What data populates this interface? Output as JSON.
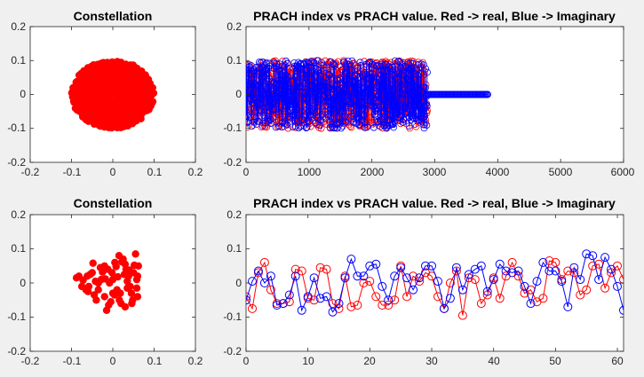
{
  "figure": {
    "background": "#f0f0f0",
    "axes_color": "#262626"
  },
  "chart_data": [
    {
      "id": "constellation-top",
      "type": "scatter",
      "title": "Constellation",
      "xlim": [
        -0.2,
        0.2
      ],
      "ylim": [
        -0.2,
        0.2
      ],
      "xticks": [
        "-0.2",
        "-0.1",
        "0",
        "0.1",
        "0.2"
      ],
      "yticks": [
        "-0.2",
        "-0.1",
        "0",
        "0.1",
        "0.2"
      ],
      "marker": "filled-circle",
      "color": "#ff0000",
      "distribution": "dense uniform disc of radius ~0.1 centered at origin",
      "series": [
        {
          "points": [
            [
              0,
              0
            ],
            [
              0.05,
              0.05
            ],
            [
              -0.05,
              -0.05
            ],
            [
              0.08,
              -0.02
            ],
            [
              -0.09,
              0.03
            ],
            [
              0.02,
              0.09
            ],
            [
              -0.03,
              -0.09
            ],
            [
              0.1,
              0.01
            ],
            [
              -0.1,
              -0.01
            ]
          ]
        }
      ]
    },
    {
      "id": "prach-top",
      "type": "line",
      "title": "PRACH index vs PRACH value. Red -> real, Blue -> Imaginary",
      "xlim": [
        0,
        6000
      ],
      "ylim": [
        -0.2,
        0.2
      ],
      "xticks": [
        "0",
        "1000",
        "2000",
        "3000",
        "4000",
        "5000",
        "6000"
      ],
      "yticks": [
        "-0.2",
        "-0.1",
        "0",
        "0.1",
        "0.2"
      ],
      "series": [
        {
          "color": "#ff0000",
          "marker": "circle",
          "x_range": [
            0,
            2880
          ],
          "y_range": [
            -0.1,
            0.1
          ]
        },
        {
          "color": "#0000ff",
          "marker": "circle",
          "x_range": [
            0,
            2880
          ],
          "y_range": [
            -0.1,
            0.1
          ],
          "flat_segment": {
            "x": [
              2880,
              3840
            ],
            "y": 0
          }
        }
      ]
    },
    {
      "id": "constellation-bottom",
      "type": "scatter",
      "title": "Constellation",
      "xlim": [
        -0.2,
        0.2
      ],
      "ylim": [
        -0.2,
        0.2
      ],
      "xticks": [
        "-0.2",
        "-0.1",
        "0",
        "0.1",
        "0.2"
      ],
      "yticks": [
        "-0.2",
        "-0.1",
        "0",
        "0.1",
        "0.2"
      ],
      "marker": "filled-circle",
      "color": "#ff0000",
      "x": [
        -0.088,
        -0.072,
        -0.062,
        -0.058,
        -0.048,
        -0.042,
        -0.035,
        -0.03,
        -0.025,
        -0.02,
        -0.018,
        -0.01,
        -0.008,
        -0.002,
        0.004,
        0.008,
        0.012,
        0.016,
        0.022,
        0.028,
        0.035,
        0.04,
        0.046,
        0.052,
        0.058,
        -0.075,
        -0.05,
        -0.04,
        -0.012,
        0.0,
        0.01,
        0.025,
        0.03,
        0.038,
        0.045,
        0.055,
        0.06,
        -0.065,
        -0.055,
        -0.028,
        -0.015,
        0.005,
        0.018,
        0.042,
        0.05,
        0.062,
        -0.082,
        -0.045,
        -0.005,
        0.032,
        0.048,
        0.02,
        -0.035,
        0.015,
        0.058,
        0.0,
        -0.02,
        0.035,
        0.06,
        -0.06,
        0.03
      ],
      "y": [
        0.015,
        0.008,
        0.02,
        -0.01,
        0.058,
        0.005,
        -0.02,
        0.045,
        0.032,
        -0.04,
        0.012,
        -0.065,
        0.0,
        0.03,
        -0.035,
        0.048,
        0.018,
        -0.05,
        0.062,
        0.025,
        -0.015,
        0.038,
        -0.06,
        0.052,
        0.01,
        -0.01,
        0.03,
        -0.05,
        0.04,
        0.01,
        -0.02,
        0.07,
        -0.07,
        0.02,
        -0.03,
        0.085,
        -0.04,
        -0.02,
        0.025,
        0.01,
        -0.08,
        0.06,
        -0.03,
        -0.01,
        0.03,
        0.05,
        0.02,
        -0.035,
        -0.055,
        0.04,
        -0.05,
        -0.06,
        0.0,
        0.08,
        -0.015,
        -0.03,
        0.05,
        0.005,
        0.02,
        -0.025,
        0.055
      ]
    },
    {
      "id": "prach-bottom",
      "type": "line",
      "title": "PRACH index vs PRACH value. Red -> real, Blue -> Imaginary",
      "xlim": [
        0,
        61
      ],
      "ylim": [
        -0.2,
        0.2
      ],
      "xticks": [
        "0",
        "10",
        "20",
        "30",
        "40",
        "50",
        "60"
      ],
      "yticks": [
        "-0.2",
        "-0.1",
        "0",
        "0.1",
        "0.2"
      ],
      "x": [
        0,
        1,
        2,
        3,
        4,
        5,
        6,
        7,
        8,
        9,
        10,
        11,
        12,
        13,
        14,
        15,
        16,
        17,
        18,
        19,
        20,
        21,
        22,
        23,
        24,
        25,
        26,
        27,
        28,
        29,
        30,
        31,
        32,
        33,
        34,
        35,
        36,
        37,
        38,
        39,
        40,
        41,
        42,
        43,
        44,
        45,
        46,
        47,
        48,
        49,
        50,
        51,
        52,
        53,
        54,
        55,
        56,
        57,
        58,
        59,
        60,
        61
      ],
      "series": [
        {
          "color": "#ff0000",
          "marker": "circle",
          "values": [
            -0.04,
            -0.075,
            0.03,
            0.06,
            -0.02,
            -0.06,
            -0.06,
            -0.055,
            0.04,
            0.035,
            -0.045,
            -0.05,
            0.045,
            0.04,
            -0.06,
            -0.075,
            0.02,
            -0.07,
            -0.065,
            0.0,
            0.005,
            -0.04,
            -0.065,
            -0.065,
            -0.05,
            0.05,
            -0.04,
            0.02,
            0.005,
            0.03,
            0.02,
            -0.04,
            -0.075,
            0.0,
            0.035,
            -0.095,
            0.015,
            0.01,
            -0.06,
            -0.035,
            0.015,
            -0.045,
            0.02,
            0.06,
            0.02,
            -0.03,
            -0.02,
            -0.055,
            -0.045,
            0.065,
            0.06,
            0.01,
            0.035,
            0.03,
            -0.035,
            -0.02,
            0.05,
            0.055,
            -0.015,
            0.03,
            0.05,
            0.01
          ]
        },
        {
          "color": "#0000ff",
          "marker": "circle",
          "values": [
            -0.05,
            0.005,
            0.035,
            0.0,
            0.02,
            -0.065,
            -0.06,
            -0.035,
            0.02,
            -0.08,
            -0.04,
            0.015,
            -0.045,
            -0.04,
            -0.085,
            -0.06,
            0.015,
            0.07,
            0.02,
            0.02,
            0.05,
            0.055,
            -0.01,
            -0.05,
            0.02,
            0.045,
            0.015,
            -0.02,
            0.015,
            0.05,
            0.05,
            0.005,
            -0.075,
            -0.045,
            0.045,
            -0.02,
            0.025,
            0.04,
            0.05,
            -0.025,
            0.01,
            0.055,
            0.035,
            0.03,
            0.035,
            -0.01,
            -0.06,
            0.005,
            0.06,
            0.035,
            0.035,
            0.005,
            -0.07,
            0.045,
            0.01,
            0.085,
            0.08,
            0.01,
            0.075,
            0.04,
            -0.01,
            -0.08
          ]
        }
      ]
    }
  ]
}
